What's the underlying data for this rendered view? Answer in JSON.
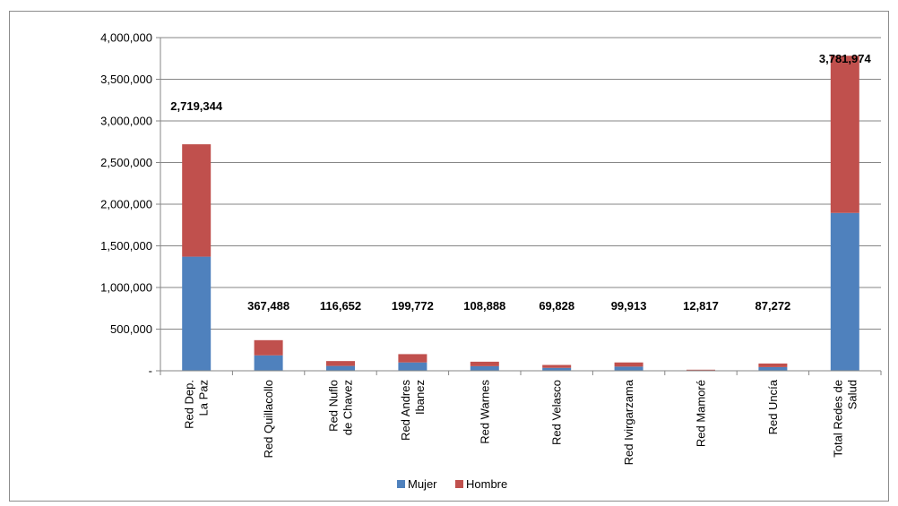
{
  "chart_data": {
    "type": "bar",
    "stacked": true,
    "categories": [
      [
        "Red Dep.",
        "La Paz"
      ],
      [
        "Red Quillacollo"
      ],
      [
        "Red Nuflo",
        "de Chavez"
      ],
      [
        "Red Andres",
        "Ibanez"
      ],
      [
        "Red Warnes"
      ],
      [
        "Red Velasco"
      ],
      [
        "Red Ivirgarzama"
      ],
      [
        "Red Mamoré"
      ],
      [
        "Red Uncía"
      ],
      [
        "Total Redes de",
        "Salud"
      ]
    ],
    "series": [
      {
        "name": "Mujer",
        "color": "#4f81bd",
        "values": [
          1370000,
          185000,
          58000,
          100000,
          55000,
          35000,
          50000,
          6000,
          44000,
          1895000
        ]
      },
      {
        "name": "Hombre",
        "color": "#c0504d",
        "values": [
          1349344,
          182488,
          58652,
          99772,
          53888,
          34828,
          49913,
          6817,
          43272,
          1886974
        ]
      }
    ],
    "total_labels": [
      "2,719,344",
      "367,488",
      "116,652",
      "199,772",
      "108,888",
      "69,828",
      "99,913",
      "12,817",
      "87,272",
      "3,781,974"
    ],
    "y_ticks": [
      "-",
      "500,000",
      "1,000,000",
      "1,500,000",
      "2,000,000",
      "2,500,000",
      "3,000,000",
      "3,500,000",
      "4,000,000"
    ],
    "ylim": [
      0,
      4000000
    ],
    "grid": true,
    "legend_position": "bottom"
  }
}
